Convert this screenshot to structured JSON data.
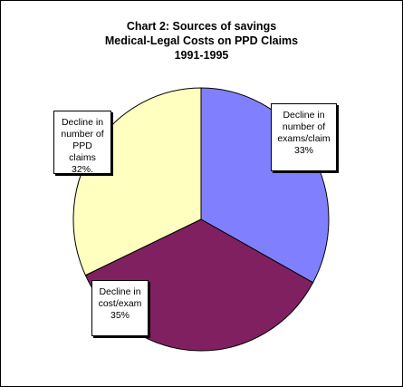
{
  "chart_data": {
    "type": "pie",
    "title": [
      "Chart 2: Sources of savings",
      "Medical-Legal Costs on PPD Claims",
      "1991-1995"
    ],
    "slices": [
      {
        "label_lines": [
          "Decline in",
          "number of",
          "exams/claim",
          "33%"
        ],
        "value": 33,
        "color": "#8080ff"
      },
      {
        "label_lines": [
          "Decline in",
          "cost/exam",
          "35%"
        ],
        "value": 35,
        "color": "#802060"
      },
      {
        "label_lines": [
          "Decline in",
          "number of",
          "PPD claims",
          "32%."
        ],
        "value": 32,
        "color": "#ffffc0"
      }
    ],
    "legend": "none"
  }
}
